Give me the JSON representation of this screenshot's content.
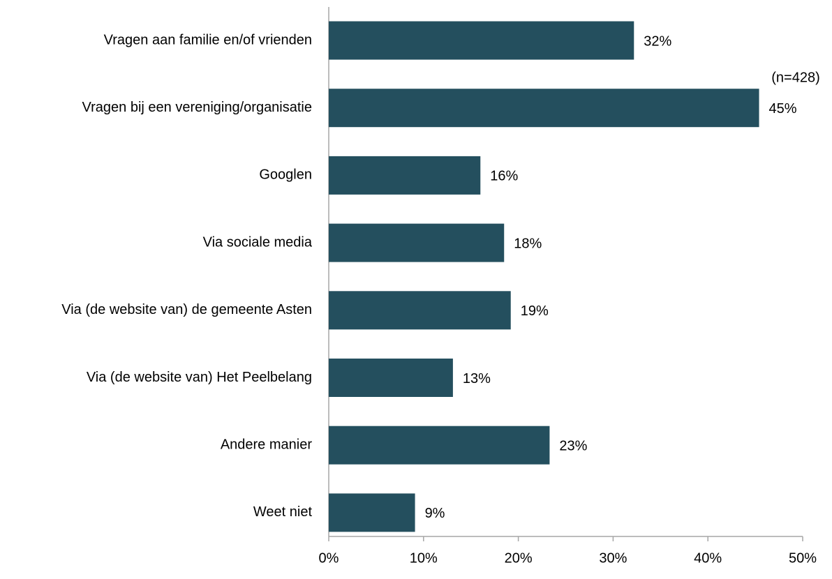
{
  "chart_data": {
    "type": "barh",
    "categories": [
      "Vragen aan familie en/of vrienden",
      "Vragen bij een vereniging/organisatie",
      "Googlen",
      "Via sociale media",
      "Via (de website van) de gemeente Asten",
      "Via (de website van) Het Peelbelang",
      "Andere manier",
      "Weet niet"
    ],
    "values": [
      32.2,
      45.4,
      16,
      18.5,
      19.2,
      13.1,
      23.3,
      9.1
    ],
    "value_labels": [
      "32%",
      "45%",
      "16%",
      "18%",
      "19%",
      "13%",
      "23%",
      "9%"
    ],
    "color": "#244f5e",
    "xlim": [
      0,
      50
    ],
    "xticks": [
      {
        "value": 0,
        "label": "0%"
      },
      {
        "value": 10,
        "label": "10%"
      },
      {
        "value": 20,
        "label": "20%"
      },
      {
        "value": 30,
        "label": "30%"
      },
      {
        "value": 40,
        "label": "40%"
      },
      {
        "value": 50,
        "label": "50%"
      }
    ],
    "annotation": "(n=428)"
  }
}
